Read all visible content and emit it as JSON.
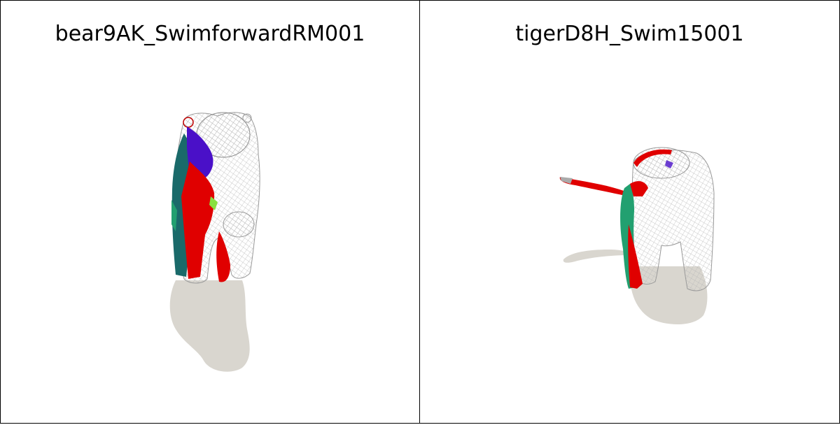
{
  "viewports": [
    {
      "title": "bear9AK_SwimforwardRM001"
    },
    {
      "title": "tigerD8H_Swim15001"
    }
  ],
  "colors": {
    "background": "#ffffff",
    "border": "#000000",
    "shadow": "#d9d6cf",
    "wireframe": "#bdbdbd",
    "red": "#e00000",
    "blue": "#4a10c8",
    "teal": "#1a6a6a",
    "green": "#22a070",
    "lime": "#88e040"
  }
}
